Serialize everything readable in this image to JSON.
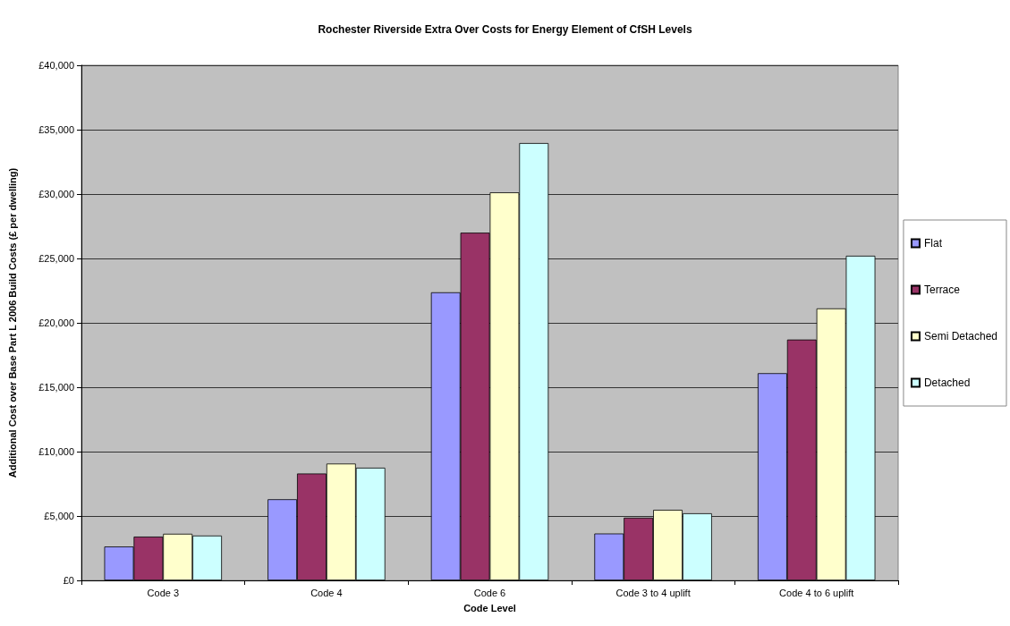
{
  "chart_data": {
    "type": "bar",
    "title": "Rochester Riverside Extra Over Costs for Energy Element of CfSH Levels",
    "xlabel": "Code Level",
    "ylabel": "Additional Cost over Base Part L 2006 Build Costs (£ per dwelling)",
    "categories": [
      "Code 3",
      "Code 4",
      "Code 6",
      "Code 3 to 4 uplift",
      "Code 4 to 6 uplift"
    ],
    "series": [
      {
        "name": "Flat",
        "color": "#9999ff",
        "values": [
          2630,
          6300,
          22370,
          3640,
          16090
        ]
      },
      {
        "name": "Terrace",
        "color": "#993366",
        "values": [
          3400,
          8300,
          27000,
          4870,
          18700
        ]
      },
      {
        "name": "Semi Detached",
        "color": "#ffffcc",
        "values": [
          3620,
          9070,
          30130,
          5480,
          21120
        ]
      },
      {
        "name": "Detached",
        "color": "#ccffff",
        "values": [
          3480,
          8750,
          33960,
          5210,
          25210
        ]
      }
    ],
    "ylim": [
      0,
      40000
    ],
    "yticks": [
      {
        "value": 0,
        "label": "£0"
      },
      {
        "value": 5000,
        "label": "£5,000"
      },
      {
        "value": 10000,
        "label": "£10,000"
      },
      {
        "value": 15000,
        "label": "£15,000"
      },
      {
        "value": 20000,
        "label": "£20,000"
      },
      {
        "value": 25000,
        "label": "£25,000"
      },
      {
        "value": 30000,
        "label": "£30,000"
      },
      {
        "value": 35000,
        "label": "£35,000"
      },
      {
        "value": 40000,
        "label": "£40,000"
      }
    ],
    "grid": "y",
    "legend": "right"
  }
}
